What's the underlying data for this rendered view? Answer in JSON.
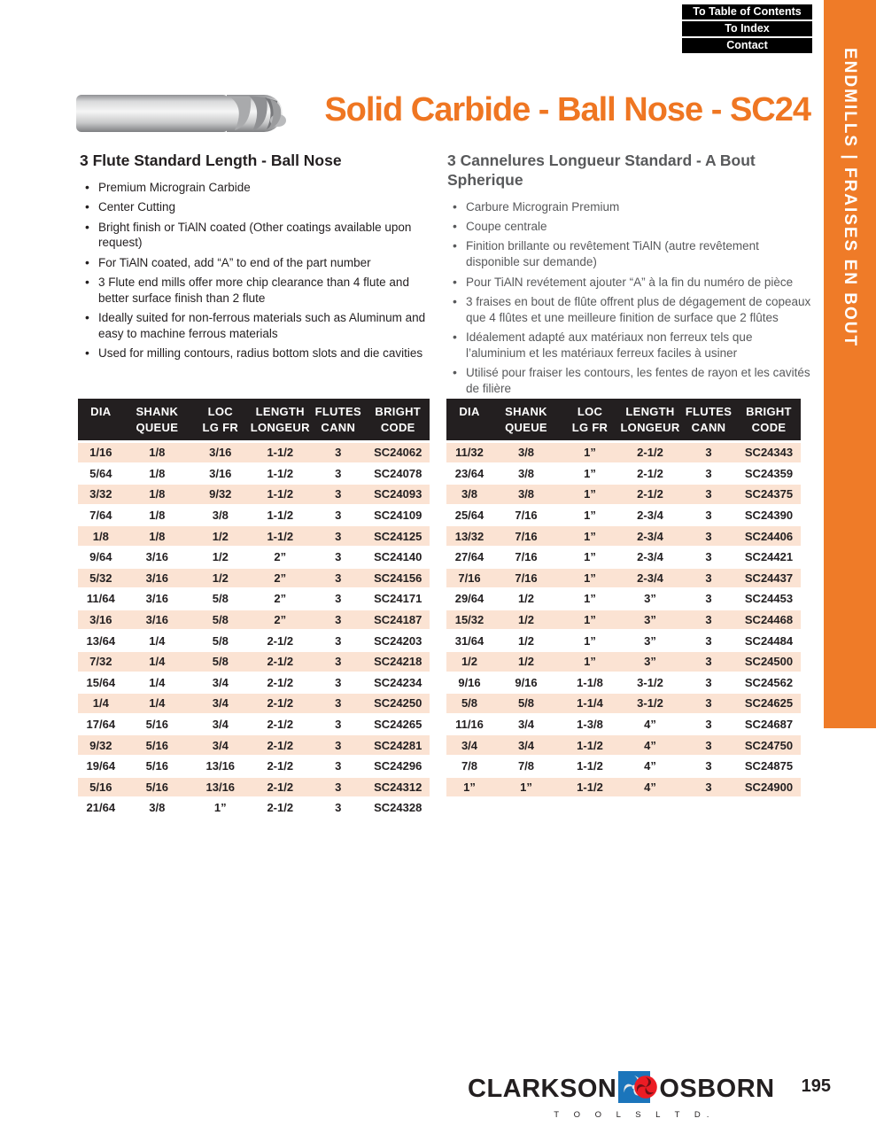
{
  "page": {
    "nav_buttons": [
      "To Table of Contents",
      "To Index",
      "Contact"
    ],
    "title": "Solid Carbide - Ball Nose - SC24",
    "sidebar_label": "ENDMILLS | FRAISES EN BOUT",
    "page_number": "195",
    "brand": {
      "name_left": "CLARKSON",
      "name_right": "OSBORN",
      "subtext": "T O O L S   L T D."
    }
  },
  "english": {
    "heading": "3 Flute Standard Length - Ball Nose",
    "bullets": [
      "Premium Micrograin Carbide",
      "Center Cutting",
      "Bright finish or TiAlN coated (Other coatings available upon request)",
      "For TiAlN coated, add “A” to end of the part number",
      "3 Flute end mills offer more chip clearance than 4 flute and better surface finish than 2 flute",
      "Ideally suited for non-ferrous materials such as Aluminum and easy to machine ferrous materials",
      "Used for milling contours, radius bottom slots and die cavities"
    ]
  },
  "french": {
    "heading": "3 Cannelures Longueur Standard - A Bout Spherique",
    "bullets": [
      "Carbure Micrograin Premium",
      "Coupe centrale",
      "Finition brillante ou revêtement TiAlN (autre revêtement disponible sur demande)",
      "Pour TiAlN revétement ajouter “A” à la fin du numéro de pièce",
      "3 fraises en bout de flûte offrent plus de dégagement de copeaux que 4 flûtes et une meilleure finition de surface que 2 flûtes",
      "Idéalement adapté aux matériaux non ferreux tels que l’aluminium et les matériaux ferreux faciles à usiner",
      "Utilisé pour fraiser les contours, les fentes de rayon et les cavités de filière"
    ]
  },
  "tables": {
    "headers": [
      [
        "DIA",
        ""
      ],
      [
        "SHANK",
        "QUEUE"
      ],
      [
        "LOC",
        "LG FR"
      ],
      [
        "LENGTH",
        "LONGEUR"
      ],
      [
        "FLUTES",
        "CANN"
      ],
      [
        "BRIGHT",
        "CODE"
      ]
    ],
    "left_rows": [
      [
        "1/16",
        "1/8",
        "3/16",
        "1-1/2",
        "3",
        "SC24062"
      ],
      [
        "5/64",
        "1/8",
        "3/16",
        "1-1/2",
        "3",
        "SC24078"
      ],
      [
        "3/32",
        "1/8",
        "9/32",
        "1-1/2",
        "3",
        "SC24093"
      ],
      [
        "7/64",
        "1/8",
        "3/8",
        "1-1/2",
        "3",
        "SC24109"
      ],
      [
        "1/8",
        "1/8",
        "1/2",
        "1-1/2",
        "3",
        "SC24125"
      ],
      [
        "9/64",
        "3/16",
        "1/2",
        "2”",
        "3",
        "SC24140"
      ],
      [
        "5/32",
        "3/16",
        "1/2",
        "2”",
        "3",
        "SC24156"
      ],
      [
        "11/64",
        "3/16",
        "5/8",
        "2”",
        "3",
        "SC24171"
      ],
      [
        "3/16",
        "3/16",
        "5/8",
        "2”",
        "3",
        "SC24187"
      ],
      [
        "13/64",
        "1/4",
        "5/8",
        "2-1/2",
        "3",
        "SC24203"
      ],
      [
        "7/32",
        "1/4",
        "5/8",
        "2-1/2",
        "3",
        "SC24218"
      ],
      [
        "15/64",
        "1/4",
        "3/4",
        "2-1/2",
        "3",
        "SC24234"
      ],
      [
        "1/4",
        "1/4",
        "3/4",
        "2-1/2",
        "3",
        "SC24250"
      ],
      [
        "17/64",
        "5/16",
        "3/4",
        "2-1/2",
        "3",
        "SC24265"
      ],
      [
        "9/32",
        "5/16",
        "3/4",
        "2-1/2",
        "3",
        "SC24281"
      ],
      [
        "19/64",
        "5/16",
        "13/16",
        "2-1/2",
        "3",
        "SC24296"
      ],
      [
        "5/16",
        "5/16",
        "13/16",
        "2-1/2",
        "3",
        "SC24312"
      ],
      [
        "21/64",
        "3/8",
        "1”",
        "2-1/2",
        "3",
        "SC24328"
      ]
    ],
    "right_rows": [
      [
        "11/32",
        "3/8",
        "1”",
        "2-1/2",
        "3",
        "SC24343"
      ],
      [
        "23/64",
        "3/8",
        "1”",
        "2-1/2",
        "3",
        "SC24359"
      ],
      [
        "3/8",
        "3/8",
        "1”",
        "2-1/2",
        "3",
        "SC24375"
      ],
      [
        "25/64",
        "7/16",
        "1”",
        "2-3/4",
        "3",
        "SC24390"
      ],
      [
        "13/32",
        "7/16",
        "1”",
        "2-3/4",
        "3",
        "SC24406"
      ],
      [
        "27/64",
        "7/16",
        "1”",
        "2-3/4",
        "3",
        "SC24421"
      ],
      [
        "7/16",
        "7/16",
        "1”",
        "2-3/4",
        "3",
        "SC24437"
      ],
      [
        "29/64",
        "1/2",
        "1”",
        "3”",
        "3",
        "SC24453"
      ],
      [
        "15/32",
        "1/2",
        "1”",
        "3”",
        "3",
        "SC24468"
      ],
      [
        "31/64",
        "1/2",
        "1”",
        "3”",
        "3",
        "SC24484"
      ],
      [
        "1/2",
        "1/2",
        "1”",
        "3”",
        "3",
        "SC24500"
      ],
      [
        "9/16",
        "9/16",
        "1-1/8",
        "3-1/2",
        "3",
        "SC24562"
      ],
      [
        "5/8",
        "5/8",
        "1-1/4",
        "3-1/2",
        "3",
        "SC24625"
      ],
      [
        "11/16",
        "3/4",
        "1-3/8",
        "4”",
        "3",
        "SC24687"
      ],
      [
        "3/4",
        "3/4",
        "1-1/2",
        "4”",
        "3",
        "SC24750"
      ],
      [
        "7/8",
        "7/8",
        "1-1/2",
        "4”",
        "3",
        "SC24875"
      ],
      [
        "1”",
        "1”",
        "1-1/2",
        "4”",
        "3",
        "SC24900"
      ]
    ]
  },
  "colors": {
    "accent_orange": "#EF7622",
    "sidebar_orange": "#EF7B28",
    "table_header_bg": "#231F20",
    "row_shade": "#FBE3D3",
    "french_gray": "#58595B",
    "logo_blue": "#1B75BB",
    "logo_red": "#EC1C24"
  }
}
